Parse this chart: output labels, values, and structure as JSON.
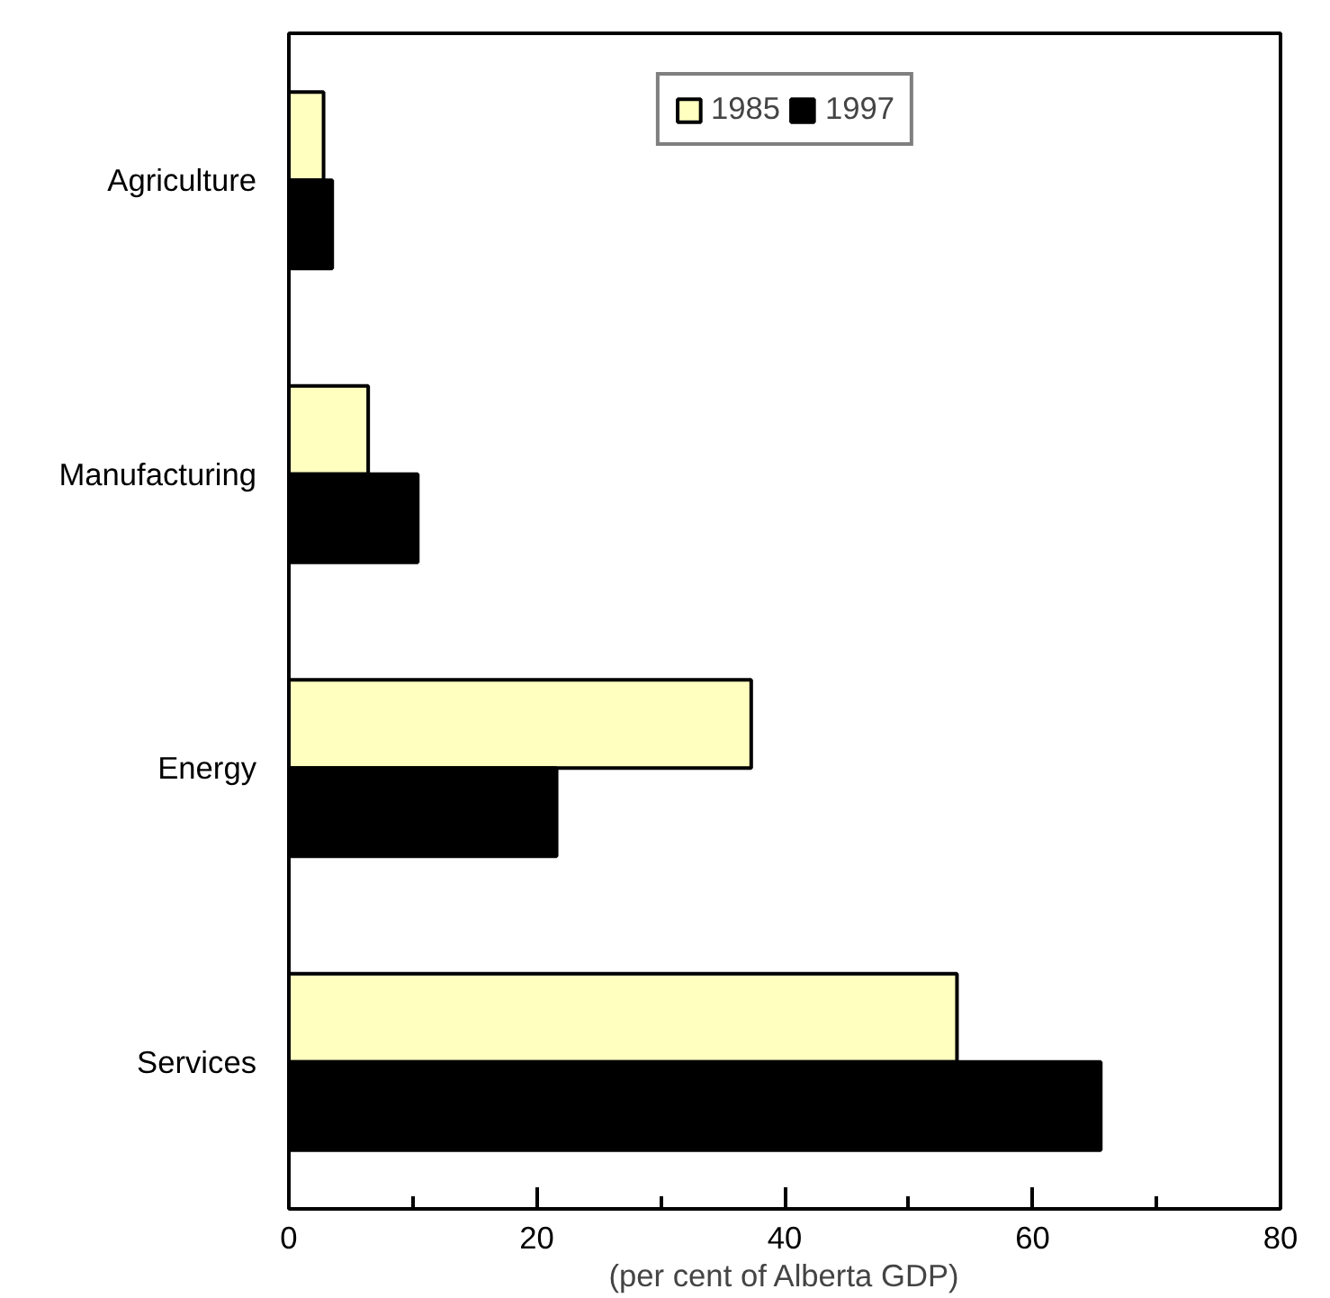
{
  "chart_data": {
    "type": "bar",
    "orientation": "horizontal",
    "xlabel": "(per cent of Alberta GDP)",
    "categories": [
      "Agriculture",
      "Manufacturing",
      "Energy",
      "Services"
    ],
    "series": [
      {
        "name": "1985",
        "color": "#ffffc0",
        "values": [
          2.8,
          6.4,
          37.3,
          53.9
        ]
      },
      {
        "name": "1997",
        "color": "#000000",
        "values": [
          3.5,
          10.4,
          21.6,
          65.5
        ]
      }
    ],
    "xlim": [
      0,
      80
    ],
    "xticks": [
      0,
      {
        "value": 10,
        "label": null
      },
      20,
      {
        "value": 30,
        "label": null
      },
      40,
      {
        "value": 50,
        "label": null
      },
      60,
      {
        "value": 70,
        "label": null
      },
      80
    ],
    "grid": false,
    "legend": "top"
  }
}
